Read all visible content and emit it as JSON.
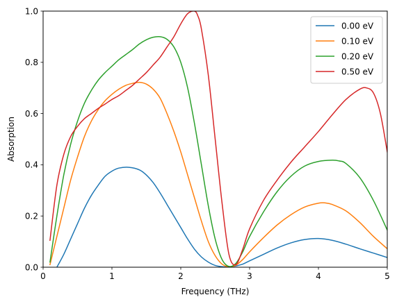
{
  "chart_data": {
    "type": "line",
    "title": "",
    "xlabel": "Frequency (THz)",
    "ylabel": "Absorption",
    "xlim": [
      0,
      5
    ],
    "ylim": [
      0,
      1.0
    ],
    "xticks": [
      0,
      1,
      2,
      3,
      4,
      5
    ],
    "xtick_labels": [
      "0",
      "1",
      "2",
      "3",
      "4",
      "5"
    ],
    "yticks": [
      0,
      0.2,
      0.4,
      0.6,
      0.8,
      1.0
    ],
    "ytick_labels": [
      "0.0",
      "0.2",
      "0.4",
      "0.6",
      "0.8",
      "1.0"
    ],
    "grid": false,
    "legend_position": "top-right",
    "series": [
      {
        "name": "0.00 eV",
        "color": "#1f77b4",
        "x": [
          0.2,
          0.3,
          0.4,
          0.5,
          0.6,
          0.7,
          0.8,
          0.9,
          1.0,
          1.1,
          1.25,
          1.4,
          1.5,
          1.6,
          1.7,
          1.8,
          1.9,
          2.0,
          2.1,
          2.2,
          2.3,
          2.4,
          2.5,
          2.6,
          2.7,
          2.8,
          2.9,
          3.0,
          3.2,
          3.4,
          3.6,
          3.8,
          4.0,
          4.2,
          4.4,
          4.6,
          4.8,
          5.0
        ],
        "y": [
          0.0,
          0.05,
          0.11,
          0.17,
          0.23,
          0.28,
          0.32,
          0.355,
          0.375,
          0.387,
          0.39,
          0.38,
          0.36,
          0.33,
          0.29,
          0.245,
          0.2,
          0.155,
          0.11,
          0.07,
          0.04,
          0.02,
          0.007,
          0.002,
          0.001,
          0.005,
          0.012,
          0.025,
          0.05,
          0.075,
          0.095,
          0.108,
          0.112,
          0.105,
          0.09,
          0.072,
          0.055,
          0.038
        ]
      },
      {
        "name": "0.10 eV",
        "color": "#ff7f0e",
        "x": [
          0.1,
          0.2,
          0.3,
          0.4,
          0.5,
          0.6,
          0.7,
          0.8,
          0.9,
          1.0,
          1.1,
          1.2,
          1.3,
          1.4,
          1.5,
          1.6,
          1.7,
          1.8,
          1.9,
          2.0,
          2.1,
          2.2,
          2.3,
          2.4,
          2.5,
          2.6,
          2.7,
          2.8,
          2.9,
          3.0,
          3.2,
          3.4,
          3.6,
          3.8,
          4.0,
          4.1,
          4.2,
          4.4,
          4.6,
          4.8,
          5.0
        ],
        "y": [
          0.01,
          0.12,
          0.23,
          0.34,
          0.43,
          0.51,
          0.57,
          0.615,
          0.65,
          0.675,
          0.695,
          0.71,
          0.718,
          0.722,
          0.715,
          0.695,
          0.66,
          0.6,
          0.53,
          0.45,
          0.36,
          0.27,
          0.18,
          0.1,
          0.045,
          0.012,
          0.002,
          0.008,
          0.03,
          0.06,
          0.115,
          0.165,
          0.205,
          0.235,
          0.25,
          0.251,
          0.245,
          0.22,
          0.175,
          0.12,
          0.072
        ]
      },
      {
        "name": "0.20 eV",
        "color": "#2ca02c",
        "x": [
          0.1,
          0.2,
          0.3,
          0.4,
          0.5,
          0.6,
          0.7,
          0.8,
          0.9,
          1.0,
          1.1,
          1.2,
          1.3,
          1.4,
          1.5,
          1.6,
          1.7,
          1.8,
          1.9,
          2.0,
          2.1,
          2.2,
          2.3,
          2.4,
          2.5,
          2.6,
          2.7,
          2.8,
          2.9,
          3.0,
          3.2,
          3.4,
          3.6,
          3.8,
          4.0,
          4.2,
          4.3,
          4.4,
          4.6,
          4.8,
          5.0
        ],
        "y": [
          0.02,
          0.2,
          0.36,
          0.48,
          0.57,
          0.64,
          0.69,
          0.73,
          0.76,
          0.785,
          0.81,
          0.83,
          0.85,
          0.872,
          0.888,
          0.898,
          0.9,
          0.89,
          0.86,
          0.8,
          0.7,
          0.56,
          0.4,
          0.24,
          0.11,
          0.03,
          0.003,
          0.015,
          0.06,
          0.12,
          0.215,
          0.295,
          0.355,
          0.395,
          0.413,
          0.418,
          0.415,
          0.405,
          0.35,
          0.26,
          0.145
        ]
      },
      {
        "name": "0.50 eV",
        "color": "#d62728",
        "x": [
          0.1,
          0.2,
          0.3,
          0.4,
          0.5,
          0.6,
          0.7,
          0.8,
          0.9,
          1.0,
          1.1,
          1.2,
          1.3,
          1.4,
          1.5,
          1.6,
          1.7,
          1.8,
          1.9,
          2.0,
          2.1,
          2.2,
          2.25,
          2.3,
          2.4,
          2.5,
          2.6,
          2.7,
          2.8,
          2.9,
          3.0,
          3.2,
          3.4,
          3.6,
          3.8,
          4.0,
          4.2,
          4.4,
          4.6,
          4.7,
          4.8,
          4.9,
          5.0
        ],
        "y": [
          0.105,
          0.32,
          0.44,
          0.51,
          0.55,
          0.58,
          0.6,
          0.62,
          0.637,
          0.655,
          0.67,
          0.69,
          0.71,
          0.735,
          0.76,
          0.79,
          0.82,
          0.86,
          0.9,
          0.95,
          0.99,
          1.0,
          0.98,
          0.93,
          0.75,
          0.5,
          0.25,
          0.05,
          0.01,
          0.07,
          0.15,
          0.26,
          0.34,
          0.41,
          0.47,
          0.53,
          0.595,
          0.655,
          0.695,
          0.7,
          0.68,
          0.6,
          0.45
        ]
      }
    ]
  }
}
